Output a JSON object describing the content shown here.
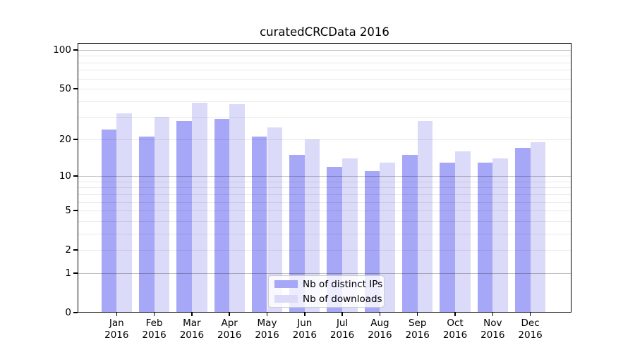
{
  "figure": {
    "title": "curatedCRCData 2016",
    "background": "#ffffff"
  },
  "chart_data": {
    "type": "bar",
    "title": "curatedCRCData 2016",
    "categories": [
      "Jan 2016",
      "Feb 2016",
      "Mar 2016",
      "Apr 2016",
      "May 2016",
      "Jun 2016",
      "Jul 2016",
      "Aug 2016",
      "Sep 2016",
      "Oct 2016",
      "Nov 2016",
      "Dec 2016"
    ],
    "series": [
      {
        "name": "Nb of distinct IPs",
        "color": "#a7a7f7",
        "values": [
          24,
          21,
          28,
          29,
          21,
          15,
          12,
          11,
          15,
          13,
          13,
          17
        ]
      },
      {
        "name": "Nb of downloads",
        "color": "#dbdbf9",
        "values": [
          32,
          30,
          39,
          38,
          25,
          20,
          14,
          13,
          28,
          16,
          14,
          19
        ]
      }
    ],
    "y_axis": {
      "scale": "log10(1+y)",
      "tick_labels": [
        "0",
        "1",
        "2",
        "5",
        "10",
        "20",
        "50",
        "100"
      ],
      "tick_values": [
        0,
        1,
        2,
        5,
        10,
        20,
        50,
        100
      ],
      "major_gridlines": [
        1,
        10,
        100
      ],
      "minor_gridlines": [
        2,
        3,
        4,
        5,
        6,
        7,
        8,
        9,
        20,
        30,
        40,
        50,
        60,
        70,
        80,
        90
      ],
      "ylim": [
        0,
        113
      ]
    },
    "x_axis": {
      "tick_count": 12
    },
    "legend": {
      "entries": [
        "Nb of distinct IPs",
        "Nb of downloads"
      ],
      "position": "lower center"
    },
    "grid": "horizontal gridlines drawn above bars",
    "colors": {
      "distinct_ips": "#a7a7f7",
      "downloads": "#dbdbf9",
      "minor_grid": "rgba(0,0,0,0.085)",
      "major_grid": "rgba(0,0,0,0.24)"
    }
  }
}
